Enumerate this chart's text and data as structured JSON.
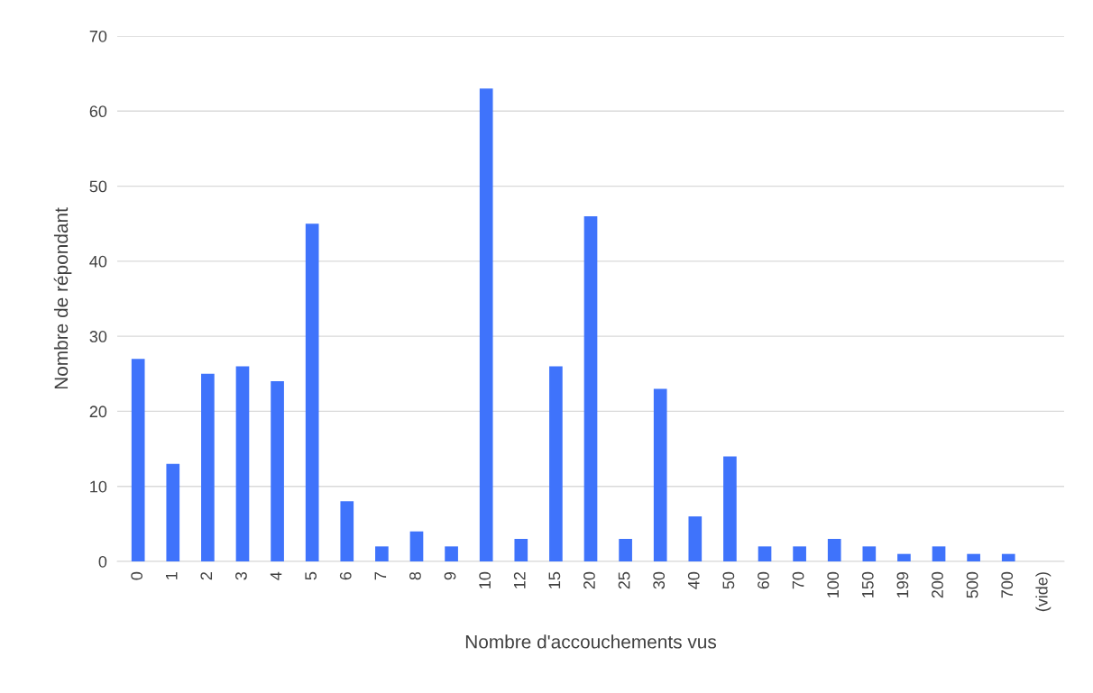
{
  "chart_data": {
    "type": "bar",
    "xlabel": "Nombre d'accouchements vus",
    "ylabel": "Nombre de répondant",
    "categories": [
      "0",
      "1",
      "2",
      "3",
      "4",
      "5",
      "6",
      "7",
      "8",
      "9",
      "10",
      "12",
      "15",
      "20",
      "25",
      "30",
      "40",
      "50",
      "60",
      "70",
      "100",
      "150",
      "199",
      "200",
      "500",
      "700",
      "(vide)"
    ],
    "values": [
      27,
      13,
      25,
      26,
      24,
      45,
      8,
      2,
      4,
      2,
      63,
      3,
      26,
      46,
      3,
      23,
      6,
      14,
      2,
      2,
      3,
      2,
      1,
      2,
      1,
      1,
      null
    ],
    "color": "#3f73fb",
    "ylim": [
      0,
      70
    ],
    "yticks": [
      0,
      10,
      20,
      30,
      40,
      50,
      60,
      70
    ],
    "grid": "y",
    "legend": false
  }
}
